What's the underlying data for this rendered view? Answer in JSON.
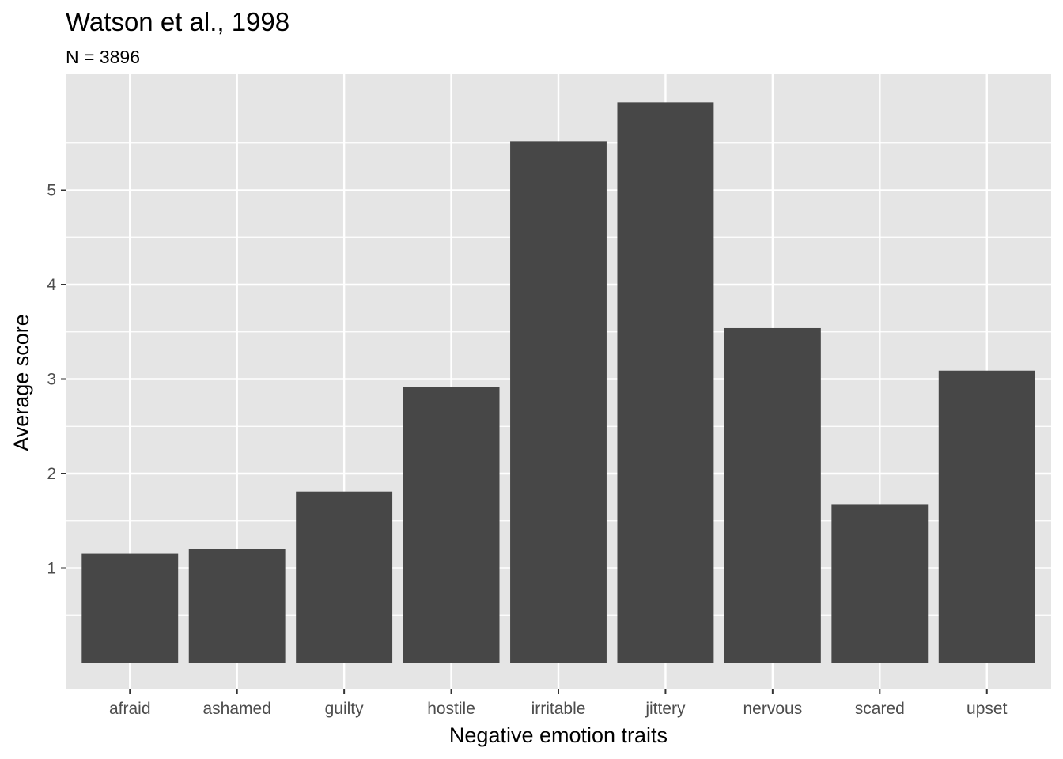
{
  "chart_data": {
    "type": "bar",
    "title": "Watson et al., 1998",
    "subtitle": "N = 3896",
    "xlabel": "Negative emotion traits",
    "ylabel": "Average score",
    "categories": [
      "afraid",
      "ashamed",
      "guilty",
      "hostile",
      "irritable",
      "jittery",
      "nervous",
      "scared",
      "upset"
    ],
    "values": [
      1.15,
      1.2,
      1.81,
      2.92,
      5.52,
      5.93,
      3.54,
      1.67,
      3.09
    ],
    "y_ticks": [
      1,
      2,
      3,
      4,
      5
    ],
    "y_tick_labels": [
      "1",
      "2",
      "3",
      "4",
      "5"
    ],
    "ylim": [
      0,
      6.2
    ],
    "grid": true,
    "colors": {
      "bar": "#474747",
      "panel": "#e5e5e5",
      "grid": "#ffffff"
    }
  }
}
